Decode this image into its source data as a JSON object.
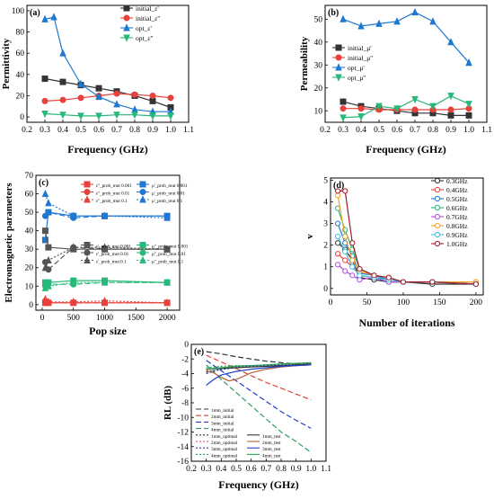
{
  "chart_data": [
    {
      "panel": "(a)",
      "type": "line",
      "xlabel": "Frequency (GHz)",
      "ylabel": "Permittivity",
      "xlim": [
        0.2,
        1.1
      ],
      "ylim": [
        -5,
        105
      ],
      "xticks": [
        "0.2",
        "0.3",
        "0.4",
        "0.5",
        "0.6",
        "0.7",
        "0.8",
        "0.9",
        "1.0",
        "1.1"
      ],
      "yticks": [
        "0",
        "20",
        "40",
        "60",
        "80",
        "100"
      ],
      "legend": "top-right",
      "series": [
        {
          "name": "initial_ε'",
          "color": "#333333",
          "marker": "square",
          "x": [
            0.3,
            0.4,
            0.5,
            0.6,
            0.7,
            0.8,
            0.9,
            1.0
          ],
          "y": [
            36,
            33,
            30,
            27,
            24,
            20,
            15,
            9
          ]
        },
        {
          "name": "initial_ε''",
          "color": "#e8403a",
          "marker": "circle",
          "x": [
            0.3,
            0.4,
            0.5,
            0.6,
            0.7,
            0.8,
            0.9,
            1.0
          ],
          "y": [
            15,
            16,
            18,
            20,
            22,
            21,
            20,
            18
          ]
        },
        {
          "name": "opt_ε'",
          "color": "#1f77d0",
          "marker": "triangle",
          "x": [
            0.3,
            0.35,
            0.4,
            0.5,
            0.6,
            0.7,
            0.8,
            0.9,
            1.0
          ],
          "y": [
            92,
            94,
            60,
            31,
            19,
            12,
            7,
            5,
            5
          ]
        },
        {
          "name": "opt_ε''",
          "color": "#27b87a",
          "marker": "triangle-down",
          "x": [
            0.3,
            0.4,
            0.5,
            0.6,
            0.7,
            0.8,
            0.9,
            1.0
          ],
          "y": [
            3,
            2,
            1,
            1,
            2,
            2,
            1,
            1
          ]
        }
      ]
    },
    {
      "panel": "(b)",
      "type": "line",
      "xlabel": "Frequency (GHz)",
      "ylabel": "Permeability",
      "xlim": [
        0.2,
        1.1
      ],
      "ylim": [
        5,
        56
      ],
      "xticks": [
        "0.2",
        "0.3",
        "0.4",
        "0.5",
        "0.6",
        "0.7",
        "0.8",
        "0.9",
        "1.0",
        "1.1"
      ],
      "yticks": [
        "10",
        "20",
        "30",
        "40",
        "50"
      ],
      "legend": "left",
      "series": [
        {
          "name": "initial_μ'",
          "color": "#333333",
          "marker": "square",
          "x": [
            0.3,
            0.4,
            0.5,
            0.6,
            0.7,
            0.8,
            0.9,
            1.0
          ],
          "y": [
            14,
            12,
            11,
            10,
            9,
            9,
            8,
            8
          ]
        },
        {
          "name": "initial_μ''",
          "color": "#e8403a",
          "marker": "circle",
          "x": [
            0.3,
            0.4,
            0.5,
            0.6,
            0.7,
            0.8,
            0.9,
            1.0
          ],
          "y": [
            11,
            11,
            10.5,
            10.5,
            10.5,
            10.5,
            10.5,
            11
          ]
        },
        {
          "name": "opt_μ'",
          "color": "#1f77d0",
          "marker": "triangle",
          "x": [
            0.3,
            0.4,
            0.5,
            0.6,
            0.7,
            0.8,
            0.9,
            1.0
          ],
          "y": [
            50,
            47,
            48,
            49,
            53,
            49,
            40,
            31
          ]
        },
        {
          "name": "opt_μ''",
          "color": "#27b87a",
          "marker": "triangle-down",
          "x": [
            0.3,
            0.4,
            0.5,
            0.6,
            0.7,
            0.8,
            0.9,
            1.0
          ],
          "y": [
            7,
            7.5,
            12,
            11,
            15,
            12,
            16.5,
            13
          ]
        }
      ]
    },
    {
      "panel": "(c)",
      "type": "line",
      "xlabel": "Pop size",
      "ylabel": "Electromagnetic parameters",
      "xlim": [
        -100,
        2200
      ],
      "ylim": [
        -3,
        70
      ],
      "xticks": [
        "0",
        "500",
        "1000",
        "1500",
        "2000"
      ],
      "yticks": [
        "0",
        "10",
        "20",
        "30",
        "40",
        "50",
        "60",
        "70"
      ],
      "legend": "right",
      "series": [
        {
          "name": "ε''_prob_mut 0.001",
          "color": "#e8403a",
          "dash": "solid",
          "marker": "square",
          "x": [
            50,
            100,
            500,
            1000,
            2000
          ],
          "y": [
            1,
            1,
            1,
            1,
            1
          ]
        },
        {
          "name": "ε''_prob_mut 0.01",
          "color": "#e8403a",
          "dash": "dash",
          "marker": "circle",
          "x": [
            50,
            100,
            500,
            1000,
            2000
          ],
          "y": [
            2,
            1,
            1,
            1,
            1
          ]
        },
        {
          "name": "ε''_prob_mut 0.1",
          "color": "#e8403a",
          "dash": "dot",
          "marker": "triangle",
          "x": [
            50,
            100,
            500,
            1000,
            2000
          ],
          "y": [
            3,
            1.5,
            1.5,
            2,
            1
          ]
        },
        {
          "name": "μ'_prob_mut 0.001",
          "color": "#1f77d0",
          "dash": "solid",
          "marker": "square",
          "x": [
            50,
            100,
            500,
            1000,
            2000
          ],
          "y": [
            35,
            50,
            48,
            48,
            48
          ]
        },
        {
          "name": "μ'_prob_mut 0.01",
          "color": "#1f77d0",
          "dash": "dash",
          "marker": "circle",
          "x": [
            50,
            100,
            500,
            1000,
            2000
          ],
          "y": [
            48,
            50,
            47,
            48,
            48
          ]
        },
        {
          "name": "μ'_prob_mut 0.1",
          "color": "#1f77d0",
          "dash": "dot",
          "marker": "triangle",
          "x": [
            50,
            100,
            500,
            1000,
            2000
          ],
          "y": [
            60,
            55,
            48,
            48,
            47
          ]
        },
        {
          "name": "ε'_prob_mut 0.001",
          "color": "#555555",
          "dash": "solid",
          "marker": "square",
          "x": [
            50,
            100,
            500,
            1000,
            2000
          ],
          "y": [
            40,
            31,
            30,
            30,
            30
          ]
        },
        {
          "name": "ε'_prob_mut 0.01",
          "color": "#555555",
          "dash": "dash",
          "marker": "circle",
          "x": [
            50,
            100,
            500,
            1000,
            2000
          ],
          "y": [
            23,
            19,
            31,
            30,
            30
          ]
        },
        {
          "name": "ε'_prob_mut 0.1",
          "color": "#555555",
          "dash": "dot",
          "marker": "triangle",
          "x": [
            50,
            100,
            500,
            1000,
            2000
          ],
          "y": [
            20,
            24,
            31,
            31,
            30
          ]
        },
        {
          "name": "μ''_prob_mut 0.001",
          "color": "#27b87a",
          "dash": "solid",
          "marker": "square",
          "x": [
            50,
            100,
            500,
            1000,
            2000
          ],
          "y": [
            12,
            12,
            13,
            13,
            12
          ]
        },
        {
          "name": "μ''_prob_mut 0.01",
          "color": "#27b87a",
          "dash": "dash",
          "marker": "circle",
          "x": [
            50,
            100,
            500,
            1000,
            2000
          ],
          "y": [
            10,
            11,
            11,
            12,
            12
          ]
        },
        {
          "name": "μ''_prob_mut 0.1",
          "color": "#27b87a",
          "dash": "dot",
          "marker": "triangle",
          "x": [
            50,
            100,
            500,
            1000,
            2000
          ],
          "y": [
            9,
            10,
            12,
            12,
            12
          ]
        }
      ]
    },
    {
      "panel": "(d)",
      "type": "line",
      "xlabel": "Number of iterations",
      "ylabel": "v",
      "xlim": [
        0,
        210
      ],
      "ylim": [
        -0.3,
        5.1
      ],
      "xticks": [
        "0",
        "50",
        "100",
        "150",
        "200"
      ],
      "yticks": [
        "0",
        "1",
        "2",
        "3",
        "4",
        "5"
      ],
      "legend": "top-right",
      "series": [
        {
          "name": "0.3GHz",
          "color": "#333333",
          "x": [
            10,
            20,
            30,
            40,
            60,
            80,
            100,
            140,
            200
          ],
          "y": [
            2.1,
            1.8,
            1.3,
            0.5,
            0.4,
            0.3,
            0.3,
            0.2,
            0.2
          ]
        },
        {
          "name": "0.4GHz",
          "color": "#e8403a",
          "x": [
            10,
            20,
            30,
            40,
            60,
            80,
            100,
            140,
            200
          ],
          "y": [
            1.6,
            1.3,
            1.0,
            0.6,
            0.5,
            0.4,
            0.3,
            0.3,
            0.3
          ]
        },
        {
          "name": "0.5GHz",
          "color": "#1f77d0",
          "x": [
            10,
            20,
            30,
            40,
            60,
            80,
            100,
            140,
            200
          ],
          "y": [
            3.0,
            2.1,
            1.5,
            0.7,
            0.6,
            0.4,
            0.3,
            0.3,
            0.2
          ]
        },
        {
          "name": "0.6GHz",
          "color": "#27b87a",
          "x": [
            10,
            20,
            30,
            40,
            60,
            80,
            100,
            140,
            200
          ],
          "y": [
            3.7,
            2.7,
            1.8,
            0.9,
            0.6,
            0.5,
            0.3,
            0.3,
            0.2
          ]
        },
        {
          "name": "0.7GHz",
          "color": "#b04fd6",
          "x": [
            10,
            20,
            30,
            40,
            60,
            80,
            100,
            140,
            200
          ],
          "y": [
            1.1,
            0.8,
            0.6,
            0.4,
            0.5,
            0.3,
            0.3,
            0.3,
            0.2
          ]
        },
        {
          "name": "0.8GHz",
          "color": "#f2a11f",
          "x": [
            10,
            20,
            30,
            40,
            60,
            80,
            100,
            140,
            200
          ],
          "y": [
            4.3,
            2.4,
            1.3,
            0.8,
            0.6,
            0.5,
            0.3,
            0.3,
            0.3
          ]
        },
        {
          "name": "0.9GHz",
          "color": "#3fbde0",
          "x": [
            10,
            20,
            30,
            40,
            60,
            80,
            100,
            140,
            200
          ],
          "y": [
            2.4,
            1.7,
            1.0,
            0.6,
            0.5,
            0.4,
            0.3,
            0.3,
            0.2
          ]
        },
        {
          "name": "1.0GHz",
          "color": "#a0192a",
          "x": [
            10,
            20,
            30,
            40,
            60,
            80,
            100,
            140,
            200
          ],
          "y": [
            4.5,
            4.5,
            2.1,
            0.9,
            0.6,
            0.5,
            0.3,
            0.3,
            0.2
          ]
        }
      ]
    },
    {
      "panel": "(e)",
      "type": "line",
      "xlabel": "Frequency (GHz)",
      "ylabel": "RL (dB)",
      "xlim": [
        0.2,
        1.1
      ],
      "ylim": [
        -16,
        0
      ],
      "xticks": [
        "0.2",
        "0.3",
        "0.4",
        "0.5",
        "0.6",
        "0.7",
        "0.8",
        "0.9",
        "1.0",
        "1.1"
      ],
      "yticks": [
        "0",
        "-2",
        "-4",
        "-6",
        "-8",
        "-10",
        "-12",
        "-14",
        "-16"
      ],
      "legend": "bottom-left",
      "series": [
        {
          "name": "1mm_initial",
          "color": "#333333",
          "dash": "dash",
          "x": [
            0.3,
            0.4,
            0.5,
            0.6,
            0.7,
            0.8,
            0.9,
            1.0
          ],
          "y": [
            -1.0,
            -1.3,
            -1.7,
            -2.0,
            -2.3,
            -2.5,
            -2.7,
            -2.8
          ]
        },
        {
          "name": "2mm_initial",
          "color": "#e8403a",
          "dash": "dash",
          "x": [
            0.3,
            0.4,
            0.5,
            0.6,
            0.7,
            0.8,
            0.9,
            1.0
          ],
          "y": [
            -1.5,
            -2.4,
            -3.3,
            -4.3,
            -5.2,
            -6.0,
            -6.8,
            -7.6
          ]
        },
        {
          "name": "3mm_initial",
          "color": "#1f3fd0",
          "dash": "dash",
          "x": [
            0.3,
            0.4,
            0.5,
            0.6,
            0.7,
            0.8,
            0.9,
            1.0
          ],
          "y": [
            -2.2,
            -3.6,
            -5.0,
            -6.4,
            -7.8,
            -9.2,
            -10.4,
            -11.5
          ]
        },
        {
          "name": "4mm_initial",
          "color": "#2aa05a",
          "dash": "dash",
          "x": [
            0.3,
            0.4,
            0.5,
            0.6,
            0.7,
            0.8,
            0.9,
            1.0
          ],
          "y": [
            -2.8,
            -4.8,
            -6.6,
            -8.4,
            -10.2,
            -12.0,
            -13.3,
            -14.8
          ]
        },
        {
          "name": "1mm_optimal",
          "color": "#333333",
          "dash": "dot",
          "x": [
            0.3,
            0.4,
            0.5,
            0.6,
            0.7,
            0.8,
            0.9,
            1.0
          ],
          "y": [
            -3.8,
            -3.4,
            -3.2,
            -3.0,
            -2.9,
            -2.8,
            -2.7,
            -2.6
          ]
        },
        {
          "name": "2mm_optimal",
          "color": "#e8403a",
          "dash": "dot",
          "x": [
            0.3,
            0.4,
            0.5,
            0.6,
            0.7,
            0.8,
            0.9,
            1.0
          ],
          "y": [
            -3.5,
            -3.2,
            -3.1,
            -3.0,
            -2.9,
            -2.8,
            -2.7,
            -2.6
          ]
        },
        {
          "name": "3mm_optimal",
          "color": "#1f3fd0",
          "dash": "dot",
          "x": [
            0.3,
            0.4,
            0.5,
            0.6,
            0.7,
            0.8,
            0.9,
            1.0
          ],
          "y": [
            -4.0,
            -3.4,
            -3.2,
            -3.0,
            -2.9,
            -2.8,
            -2.7,
            -2.6
          ]
        },
        {
          "name": "4mm_optimal",
          "color": "#2aa05a",
          "dash": "dot",
          "x": [
            0.3,
            0.4,
            0.5,
            0.6,
            0.7,
            0.8,
            0.9,
            1.0
          ],
          "y": [
            -3.2,
            -3.0,
            -2.9,
            -2.9,
            -2.8,
            -2.7,
            -2.7,
            -2.6
          ]
        },
        {
          "name": "1mm_test",
          "color": "#333333",
          "dash": "solid",
          "x": [
            0.3,
            0.4,
            0.5,
            0.6,
            0.7,
            0.8,
            0.9,
            1.0
          ],
          "y": [
            -3.4,
            -3.3,
            -3.2,
            -3.1,
            -3.0,
            -2.9,
            -2.8,
            -2.7
          ]
        },
        {
          "name": "2mm_test",
          "color": "#b5623a",
          "dash": "solid",
          "x": [
            0.3,
            0.35,
            0.4,
            0.45,
            0.5,
            0.6,
            0.7,
            0.8,
            0.9,
            1.0
          ],
          "y": [
            -3.6,
            -3.9,
            -4.5,
            -5.0,
            -4.8,
            -3.9,
            -3.4,
            -3.1,
            -2.9,
            -2.8
          ]
        },
        {
          "name": "3mm_test",
          "color": "#1f3fd0",
          "dash": "solid",
          "x": [
            0.3,
            0.35,
            0.4,
            0.5,
            0.6,
            0.7,
            0.8,
            0.9,
            1.0
          ],
          "y": [
            -5.6,
            -4.8,
            -4.2,
            -3.7,
            -3.4,
            -3.2,
            -3.0,
            -2.9,
            -2.8
          ]
        },
        {
          "name": "4mm_test",
          "color": "#2aa05a",
          "dash": "solid",
          "x": [
            0.3,
            0.4,
            0.5,
            0.6,
            0.7,
            0.8,
            0.9,
            1.0
          ],
          "y": [
            -3.4,
            -3.2,
            -3.0,
            -2.9,
            -2.8,
            -2.7,
            -2.6,
            -2.5
          ]
        }
      ]
    }
  ]
}
